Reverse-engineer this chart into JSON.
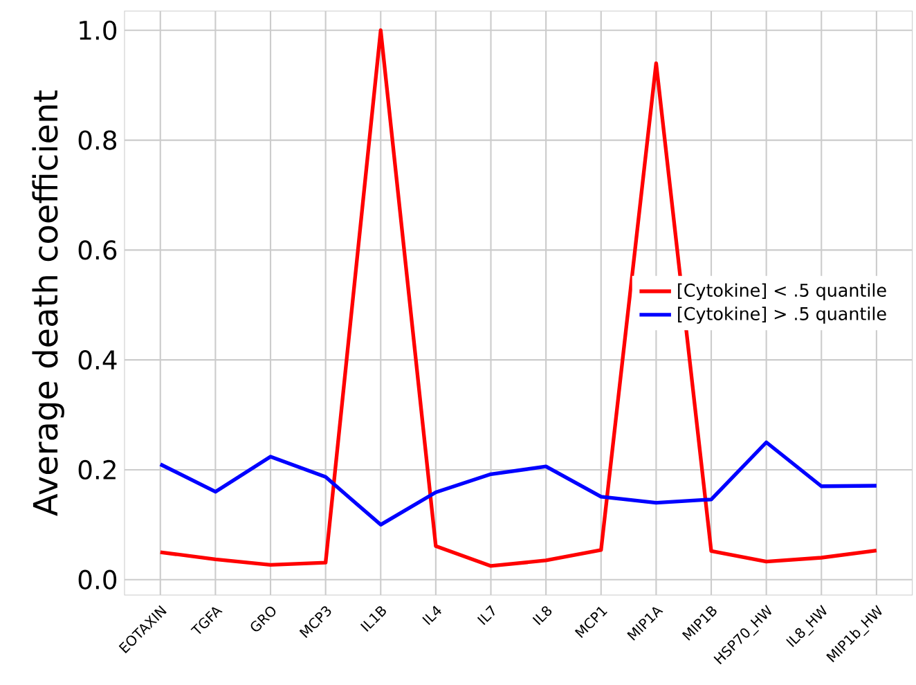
{
  "chart_data": {
    "type": "line",
    "ylabel": "Average death coefficient",
    "categories": [
      "EOTAXIN",
      "TGFA",
      "GRO",
      "MCP3",
      "IL1B",
      "IL4",
      "IL7",
      "IL8",
      "MCP1",
      "MIP1A",
      "MIP1B",
      "HSP70_HW",
      "IL8_HW",
      "MIP1b_HW"
    ],
    "series": [
      {
        "name": "[Cytokine] < .5 quantile",
        "color": "#ff0000",
        "values": [
          0.05,
          0.037,
          0.027,
          0.031,
          1.0,
          0.061,
          0.025,
          0.035,
          0.054,
          0.94,
          0.052,
          0.033,
          0.04,
          0.053
        ]
      },
      {
        "name": "[Cytokine] > .5 quantile",
        "color": "#0000ff",
        "values": [
          0.21,
          0.16,
          0.224,
          0.187,
          0.1,
          0.159,
          0.192,
          0.206,
          0.151,
          0.14,
          0.146,
          0.25,
          0.17,
          0.171
        ]
      }
    ],
    "ylim": [
      -0.028,
      1.035
    ],
    "yticks": [
      {
        "value": 0,
        "label": "0.0"
      },
      {
        "value": 0.2,
        "label": "0.2"
      },
      {
        "value": 0.4,
        "label": "0.4"
      },
      {
        "value": 0.6,
        "label": "0.6"
      },
      {
        "value": 0.8,
        "label": "0.8"
      },
      {
        "value": 1.0,
        "label": "1.0"
      }
    ],
    "grid": true,
    "legend": "right",
    "marker": "none",
    "line_style": "solid"
  }
}
